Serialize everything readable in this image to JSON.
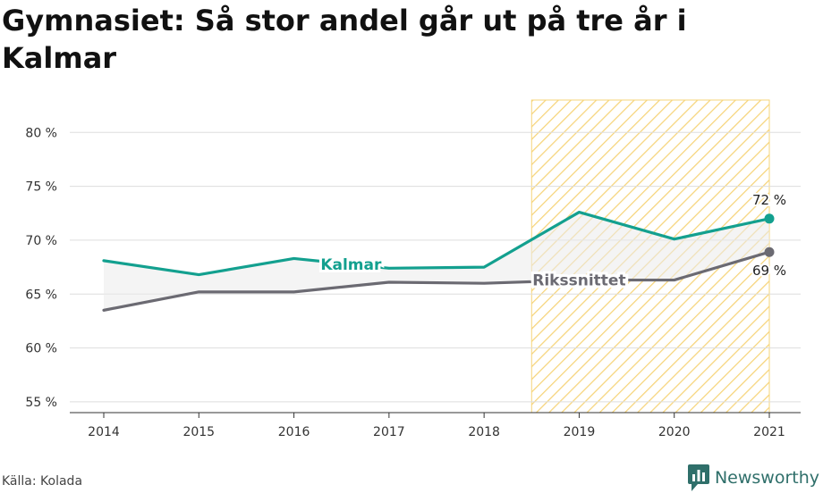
{
  "title": "Gymnasiet: Så stor andel går ut på tre år i Kalmar",
  "source": "Källa: Kolada",
  "brand": {
    "name": "Newsworthy",
    "icon": "newsworthy-logo-icon",
    "color": "#2f6f6a"
  },
  "chart_data": {
    "type": "line",
    "x": [
      "2014",
      "2015",
      "2016",
      "2017",
      "2018",
      "2019",
      "2020",
      "2021"
    ],
    "ylim": [
      54,
      84
    ],
    "yticks": [
      55,
      60,
      65,
      70,
      75,
      80
    ],
    "ytick_labels": [
      "55 %",
      "60 %",
      "65 %",
      "70 %",
      "75 %",
      "80 %"
    ],
    "grid": true,
    "highlight_range": [
      "2019",
      "2021"
    ],
    "series": [
      {
        "name": "Kalmar",
        "color": "#13a08f",
        "values": [
          68.1,
          66.8,
          68.3,
          67.4,
          67.5,
          72.6,
          70.1,
          72.0
        ],
        "end_label": "72 %"
      },
      {
        "name": "Rikssnittet",
        "color": "#6b6a72",
        "values": [
          63.5,
          65.2,
          65.2,
          66.1,
          66.0,
          66.3,
          66.3,
          68.9
        ],
        "end_label": "69 %"
      }
    ]
  }
}
